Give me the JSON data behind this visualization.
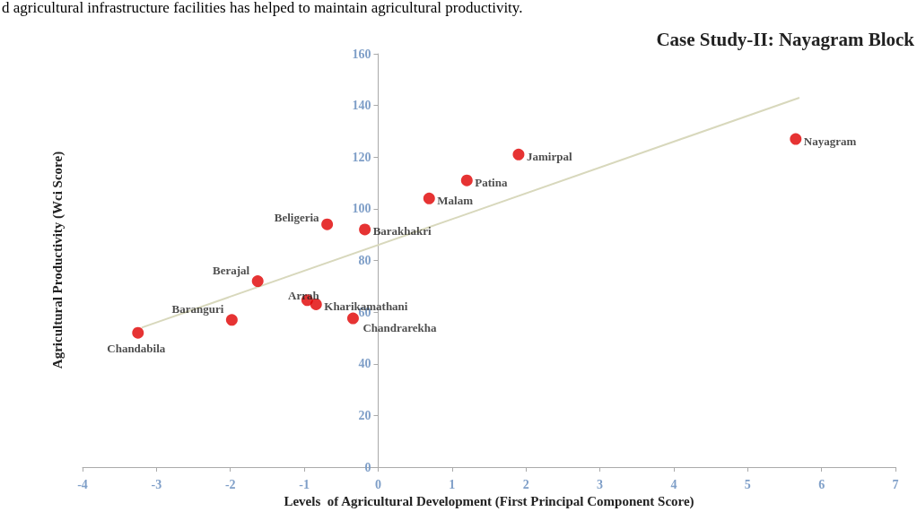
{
  "chart_data": {
    "type": "scatter",
    "title": "Case Study-II: Nayagram Block",
    "xlabel": "Levels  of Agricultural Development (First Principal Component Score)",
    "ylabel": "Agricultural Productivity (Wci Score)",
    "x": [
      -3.25,
      -1.98,
      -1.63,
      -0.96,
      -0.84,
      -0.34,
      -0.69,
      -0.18,
      0.69,
      1.2,
      1.9,
      5.65
    ],
    "series": [
      {
        "color": "#e00000",
        "values": [
          52,
          57,
          72,
          64.6,
          63,
          57.6,
          94,
          92,
          104,
          111,
          121,
          127
        ]
      },
      {
        "type": "line",
        "marker": "none",
        "color": "#d8d8bc",
        "x": [
          -3.2,
          5.7
        ],
        "values": [
          54,
          143
        ]
      }
    ],
    "annotations": [
      "d agricultural infrastructure facilities has helped to maintain agricultural productivity.",
      {
        "text": "Chandabila",
        "x": -3.25,
        "y": 52
      },
      {
        "text": "Baranguri",
        "x": -1.98,
        "y": 57
      },
      {
        "text": "Berajal",
        "x": -1.63,
        "y": 72
      },
      {
        "text": "Arrah",
        "x": -0.96,
        "y": 64.6
      },
      {
        "text": "Kharikamathani",
        "x": -0.84,
        "y": 63
      },
      {
        "text": "Chandrarekha",
        "x": -0.34,
        "y": 57.6
      },
      {
        "text": "Beligeria",
        "x": -0.69,
        "y": 94
      },
      {
        "text": "Barakhakri",
        "x": -0.18,
        "y": 92
      },
      {
        "text": "Malam",
        "x": 0.69,
        "y": 104
      },
      {
        "text": "Patina",
        "x": 1.2,
        "y": 111
      },
      {
        "text": "Jamirpal",
        "x": 1.9,
        "y": 121
      },
      {
        "text": "Nayagram",
        "x": 5.65,
        "y": 127
      }
    ],
    "xlim": [
      -4,
      7
    ],
    "xticks": [
      -4,
      -3,
      -2,
      -1,
      0,
      1,
      2,
      3,
      4,
      5,
      6,
      7
    ],
    "ylim": [
      0,
      160
    ],
    "yticks": [
      0,
      20,
      40,
      60,
      80,
      100,
      120,
      140,
      160
    ],
    "grid": false,
    "marker": "circle"
  }
}
